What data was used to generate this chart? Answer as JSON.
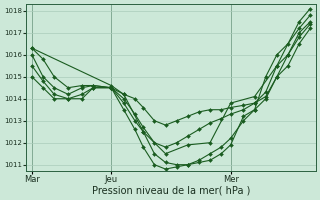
{
  "bg_color": "#cce8d8",
  "grid_color": "#aaccbb",
  "line_color": "#1a5c20",
  "marker_color": "#1a5c20",
  "xlabel": "Pression niveau de la mer( hPa )",
  "xlabel_fontsize": 7,
  "ylim": [
    1010.7,
    1018.3
  ],
  "yticks": [
    1011,
    1012,
    1013,
    1014,
    1015,
    1016,
    1017,
    1018
  ],
  "xtick_labels": [
    "Mar",
    "Jeu",
    "Mer"
  ],
  "xtick_positions": [
    0.0,
    0.285,
    0.714
  ],
  "vline_positions": [
    0.0,
    0.285,
    0.714
  ],
  "series": [
    {
      "x": [
        0.0,
        0.04,
        0.08,
        0.13,
        0.18,
        0.22,
        0.285,
        0.33,
        0.37,
        0.4,
        0.44,
        0.48,
        0.52,
        0.56,
        0.6,
        0.64,
        0.68,
        0.714,
        0.76,
        0.8,
        0.84,
        0.88,
        0.92,
        0.96,
        1.0
      ],
      "y": [
        1016.3,
        1015.8,
        1015.0,
        1014.5,
        1014.6,
        1014.6,
        1014.5,
        1013.5,
        1012.6,
        1011.8,
        1011.0,
        1010.8,
        1010.9,
        1011.0,
        1011.1,
        1011.2,
        1011.5,
        1011.9,
        1013.2,
        1013.5,
        1014.0,
        1015.0,
        1016.0,
        1017.0,
        1017.5
      ]
    },
    {
      "x": [
        0.0,
        0.04,
        0.08,
        0.13,
        0.18,
        0.22,
        0.285,
        0.33,
        0.37,
        0.4,
        0.44,
        0.48,
        0.52,
        0.56,
        0.6,
        0.64,
        0.68,
        0.714,
        0.76,
        0.8,
        0.84,
        0.88,
        0.92,
        0.96,
        1.0
      ],
      "y": [
        1016.0,
        1015.0,
        1014.5,
        1014.2,
        1014.5,
        1014.6,
        1014.5,
        1013.8,
        1013.0,
        1012.5,
        1011.5,
        1011.1,
        1011.0,
        1011.0,
        1011.2,
        1011.5,
        1011.8,
        1012.2,
        1013.0,
        1013.5,
        1015.0,
        1016.0,
        1016.5,
        1017.2,
        1017.8
      ]
    },
    {
      "x": [
        0.0,
        0.04,
        0.08,
        0.13,
        0.18,
        0.22,
        0.285,
        0.33,
        0.37,
        0.4,
        0.44,
        0.48,
        0.52,
        0.56,
        0.6,
        0.64,
        0.68,
        0.714,
        0.76,
        0.8,
        0.84,
        0.88,
        0.92,
        0.96,
        1.0
      ],
      "y": [
        1015.5,
        1014.8,
        1014.2,
        1014.0,
        1014.0,
        1014.5,
        1014.5,
        1014.0,
        1013.3,
        1012.7,
        1012.0,
        1011.8,
        1012.0,
        1012.3,
        1012.6,
        1012.9,
        1013.1,
        1013.3,
        1013.5,
        1013.8,
        1014.3,
        1015.5,
        1016.0,
        1016.8,
        1017.4
      ]
    },
    {
      "x": [
        0.0,
        0.04,
        0.08,
        0.13,
        0.18,
        0.22,
        0.285,
        0.33,
        0.37,
        0.4,
        0.44,
        0.48,
        0.52,
        0.56,
        0.6,
        0.64,
        0.68,
        0.714,
        0.76,
        0.8,
        0.84,
        0.88,
        0.92,
        0.96,
        1.0
      ],
      "y": [
        1015.0,
        1014.5,
        1014.0,
        1014.0,
        1014.2,
        1014.5,
        1014.5,
        1014.2,
        1014.0,
        1013.6,
        1013.0,
        1012.8,
        1013.0,
        1013.2,
        1013.4,
        1013.5,
        1013.5,
        1013.6,
        1013.7,
        1013.8,
        1014.1,
        1015.0,
        1015.5,
        1016.5,
        1017.2
      ]
    },
    {
      "x": [
        0.0,
        0.285,
        0.33,
        0.4,
        0.48,
        0.56,
        0.64,
        0.714,
        0.8,
        0.88,
        0.96,
        1.0
      ],
      "y": [
        1016.3,
        1014.6,
        1014.2,
        1012.5,
        1011.5,
        1011.9,
        1012.0,
        1013.8,
        1014.1,
        1015.5,
        1017.5,
        1018.1
      ]
    }
  ]
}
